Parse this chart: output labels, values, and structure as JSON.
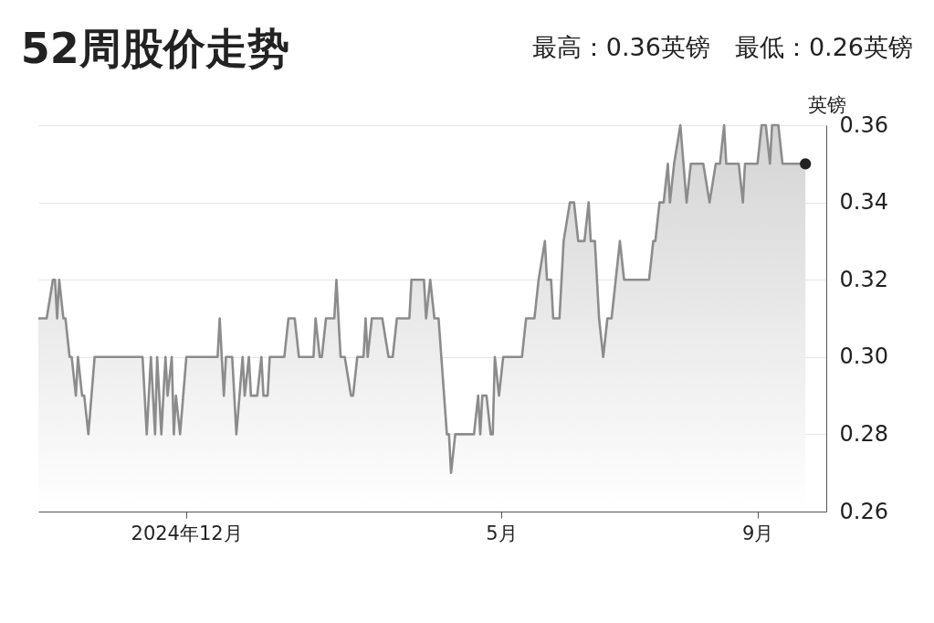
{
  "chart_data": {
    "type": "area",
    "title": "52周股价走势",
    "subtitle": "最高：0.36英镑　最低：0.26英镑",
    "ylabel": "英镑",
    "xlim": [
      "2024-09-21",
      "2025-10-04"
    ],
    "xticks": [
      {
        "value": "2024-12-01",
        "label": "2024年12月"
      },
      {
        "value": "2025-05-01",
        "label": "5月"
      },
      {
        "value": "2025-09-01",
        "label": "9月"
      }
    ],
    "ylim": [
      0.26,
      0.36
    ],
    "yticks": [
      0.26,
      0.28,
      {
        "value": 0.3,
        "label": "0.30"
      },
      0.32,
      0.34,
      0.36
    ],
    "grid": "y",
    "series": [
      {
        "color": "#8c8c8c",
        "x": [
          "2024-09-21",
          "2024-09-25",
          "2024-09-28",
          "2024-09-29",
          "2024-09-30",
          "2024-10-01",
          "2024-10-03",
          "2024-10-04",
          "2024-10-06",
          "2024-10-07",
          "2024-10-09",
          "2024-10-10",
          "2024-10-12",
          "2024-10-13",
          "2024-10-15",
          "2024-10-18",
          "2024-11-10",
          "2024-11-12",
          "2024-11-14",
          "2024-11-16",
          "2024-11-17",
          "2024-11-19",
          "2024-11-21",
          "2024-11-22",
          "2024-11-24",
          "2024-11-25",
          "2024-11-26",
          "2024-11-28",
          "2024-12-01",
          "2024-12-16",
          "2024-12-17",
          "2024-12-19",
          "2024-12-20",
          "2024-12-23",
          "2024-12-25",
          "2024-12-28",
          "2024-12-29",
          "2024-12-31",
          "2025-01-01",
          "2025-01-04",
          "2025-01-06",
          "2025-01-07",
          "2025-01-09",
          "2025-01-10",
          "2025-01-17",
          "2025-01-19",
          "2025-01-22",
          "2025-01-24",
          "2025-01-31",
          "2025-02-01",
          "2025-02-03",
          "2025-02-04",
          "2025-02-06",
          "2025-02-10",
          "2025-02-11",
          "2025-02-13",
          "2025-02-15",
          "2025-02-18",
          "2025-02-19",
          "2025-02-21",
          "2025-02-24",
          "2025-02-25",
          "2025-02-26",
          "2025-02-28",
          "2025-03-05",
          "2025-03-08",
          "2025-03-10",
          "2025-03-12",
          "2025-03-18",
          "2025-03-19",
          "2025-03-25",
          "2025-03-26",
          "2025-03-28",
          "2025-03-30",
          "2025-04-01",
          "2025-04-05",
          "2025-04-06",
          "2025-04-07",
          "2025-04-09",
          "2025-04-18",
          "2025-04-20",
          "2025-04-21",
          "2025-04-22",
          "2025-04-24",
          "2025-04-26",
          "2025-04-27",
          "2025-04-28",
          "2025-04-30",
          "2025-05-02",
          "2025-05-11",
          "2025-05-13",
          "2025-05-17",
          "2025-05-19",
          "2025-05-22",
          "2025-05-23",
          "2025-05-25",
          "2025-05-26",
          "2025-05-29",
          "2025-05-31",
          "2025-06-03",
          "2025-06-05",
          "2025-06-07",
          "2025-06-10",
          "2025-06-12",
          "2025-06-13",
          "2025-06-15",
          "2025-06-17",
          "2025-06-19",
          "2025-06-21",
          "2025-06-23",
          "2025-06-25",
          "2025-06-27",
          "2025-06-29",
          "2025-07-11",
          "2025-07-13",
          "2025-07-14",
          "2025-07-16",
          "2025-07-18",
          "2025-07-20",
          "2025-07-21",
          "2025-07-23",
          "2025-07-26",
          "2025-07-29",
          "2025-07-31",
          "2025-08-06",
          "2025-08-09",
          "2025-08-12",
          "2025-08-14",
          "2025-08-16",
          "2025-08-17",
          "2025-08-23",
          "2025-08-25",
          "2025-08-26",
          "2025-09-01",
          "2025-09-03",
          "2025-09-05",
          "2025-09-07",
          "2025-09-08",
          "2025-09-11",
          "2025-09-13",
          "2025-09-24"
        ],
        "values": [
          0.31,
          0.31,
          0.32,
          0.32,
          0.31,
          0.32,
          0.31,
          0.31,
          0.3,
          0.3,
          0.29,
          0.3,
          0.29,
          0.29,
          0.28,
          0.3,
          0.3,
          0.28,
          0.3,
          0.28,
          0.3,
          0.28,
          0.3,
          0.29,
          0.3,
          0.28,
          0.29,
          0.28,
          0.3,
          0.3,
          0.31,
          0.29,
          0.3,
          0.3,
          0.28,
          0.3,
          0.29,
          0.3,
          0.29,
          0.29,
          0.3,
          0.29,
          0.29,
          0.3,
          0.3,
          0.31,
          0.31,
          0.3,
          0.3,
          0.31,
          0.3,
          0.3,
          0.31,
          0.31,
          0.32,
          0.3,
          0.3,
          0.29,
          0.29,
          0.3,
          0.3,
          0.31,
          0.3,
          0.31,
          0.31,
          0.3,
          0.3,
          0.31,
          0.31,
          0.32,
          0.32,
          0.31,
          0.32,
          0.31,
          0.31,
          0.28,
          0.28,
          0.27,
          0.28,
          0.28,
          0.29,
          0.28,
          0.29,
          0.29,
          0.28,
          0.28,
          0.3,
          0.29,
          0.3,
          0.3,
          0.31,
          0.31,
          0.32,
          0.33,
          0.32,
          0.32,
          0.31,
          0.31,
          0.33,
          0.34,
          0.34,
          0.33,
          0.33,
          0.34,
          0.33,
          0.33,
          0.31,
          0.3,
          0.31,
          0.31,
          0.32,
          0.33,
          0.32,
          0.32,
          0.33,
          0.33,
          0.34,
          0.34,
          0.35,
          0.34,
          0.35,
          0.36,
          0.34,
          0.35,
          0.35,
          0.34,
          0.35,
          0.35,
          0.36,
          0.35,
          0.35,
          0.34,
          0.35,
          0.35,
          0.36,
          0.36,
          0.35,
          0.36,
          0.36,
          0.35,
          0.35
        ]
      },
      {
        "type": "scatter",
        "color": "#222222",
        "marker": "circle",
        "x": [
          "2025-09-24"
        ],
        "values": [
          0.35
        ]
      }
    ]
  }
}
